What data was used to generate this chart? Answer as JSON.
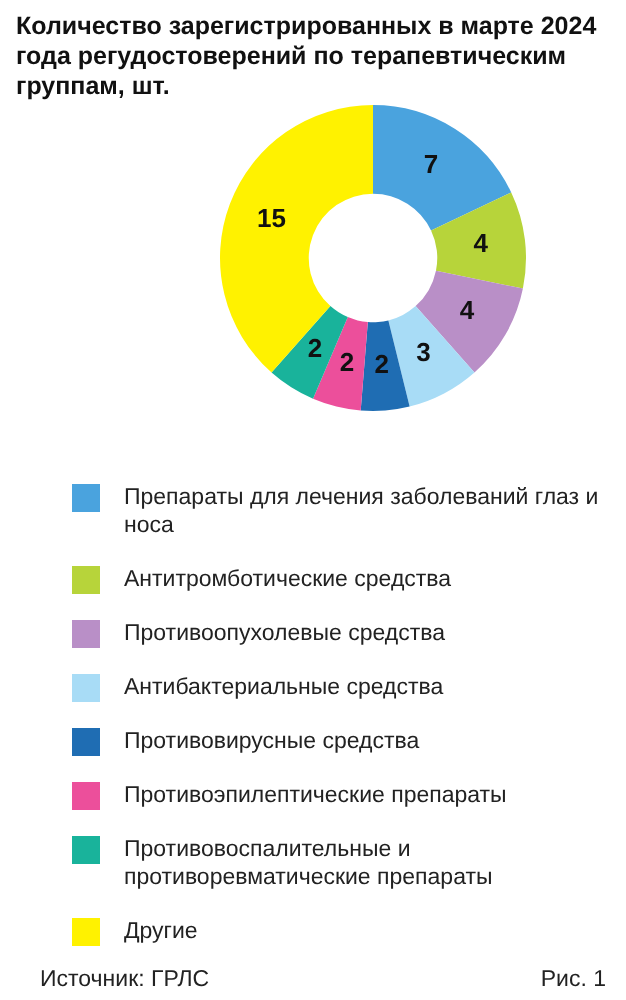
{
  "chart_data": {
    "type": "donut",
    "title": "Количество зарегистрированных в марте 2024 года регудостоверений по терапевтическим группам, шт.",
    "categories": [
      "Препараты для лечения заболеваний глаз и носа",
      "Антитромботические средства",
      "Противоопухолевые средства",
      "Антибактериальные средства",
      "Противовирусные средства",
      "Противоэпилептические препараты",
      "Противовоспалительные и противоревматические препараты",
      "Другие"
    ],
    "values": [
      7,
      4,
      4,
      3,
      2,
      2,
      2,
      15
    ],
    "colors": [
      "#4aa3de",
      "#b7d43a",
      "#b98fc7",
      "#a8dcf6",
      "#1f6db3",
      "#ec4f9b",
      "#19b39b",
      "#fff200"
    ],
    "data_labels": true,
    "legend": "bottom",
    "annotations": [
      "Источник:  ГРЛС",
      "Рис. 1"
    ]
  }
}
